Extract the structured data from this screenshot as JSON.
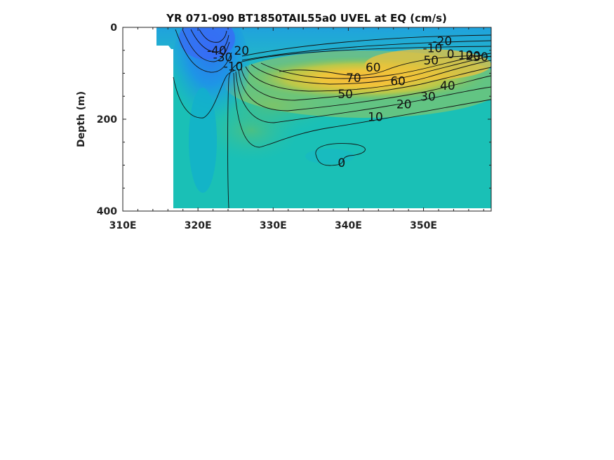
{
  "chart_data": {
    "type": "heatmap",
    "title": "YR 071-090 BT1850TAIL55a0 UVEL at EQ (cm/s)",
    "xlabel": "",
    "ylabel": "Depth (m)",
    "xlim": [
      310,
      359
    ],
    "ylim": [
      0,
      400
    ],
    "y_reversed": true,
    "x_ticks": [
      310,
      320,
      330,
      340,
      350
    ],
    "x_tick_labels": [
      "310E",
      "320E",
      "330E",
      "340E",
      "350E"
    ],
    "y_ticks": [
      0,
      200,
      400
    ],
    "y_tick_labels": [
      "0",
      "200",
      "400"
    ],
    "colormap": "parula",
    "color_range": [
      -50,
      80
    ],
    "land_mask": [
      {
        "lon_max": 314.5,
        "depth_min": 0,
        "depth_max": 400
      },
      {
        "lon_max": 316.6,
        "depth_min": 40,
        "depth_max": 400
      }
    ],
    "features": [
      {
        "name": "westward surface flow core",
        "lon": 321.5,
        "depth": 40,
        "value": -45
      },
      {
        "name": "Equatorial Undercurrent core",
        "lon": 342,
        "depth": 115,
        "value": 75
      },
      {
        "name": "weak return flow",
        "lon": 339,
        "depth": 280,
        "value": -2
      }
    ],
    "contour_levels": [
      -40,
      -30,
      -20,
      -10,
      0,
      10,
      20,
      30,
      40,
      50,
      60,
      70
    ],
    "contour_labels": [
      {
        "text": "-40",
        "lon": 322.5,
        "depth": 50
      },
      {
        "text": "-30",
        "lon": 323.3,
        "depth": 65
      },
      {
        "text": "20",
        "lon": 325.8,
        "depth": 50
      },
      {
        "text": "-10",
        "lon": 324.7,
        "depth": 85
      },
      {
        "text": "-20",
        "lon": 352.5,
        "depth": 30
      },
      {
        "text": "-10",
        "lon": 351.2,
        "depth": 45
      },
      {
        "text": "0",
        "lon": 353.6,
        "depth": 58
      },
      {
        "text": "10",
        "lon": 355.6,
        "depth": 60
      },
      {
        "text": "20",
        "lon": 356.6,
        "depth": 62
      },
      {
        "text": "30",
        "lon": 357.6,
        "depth": 64
      },
      {
        "text": "50",
        "lon": 351.0,
        "depth": 72
      },
      {
        "text": "60",
        "lon": 343.3,
        "depth": 87
      },
      {
        "text": "70",
        "lon": 340.7,
        "depth": 110
      },
      {
        "text": "60",
        "lon": 346.6,
        "depth": 117
      },
      {
        "text": "40",
        "lon": 353.2,
        "depth": 127
      },
      {
        "text": "50",
        "lon": 339.6,
        "depth": 145
      },
      {
        "text": "30",
        "lon": 350.6,
        "depth": 150
      },
      {
        "text": "20",
        "lon": 347.4,
        "depth": 167
      },
      {
        "text": "10",
        "lon": 343.6,
        "depth": 195
      },
      {
        "text": "0",
        "lon": 339.1,
        "depth": 295
      }
    ]
  }
}
